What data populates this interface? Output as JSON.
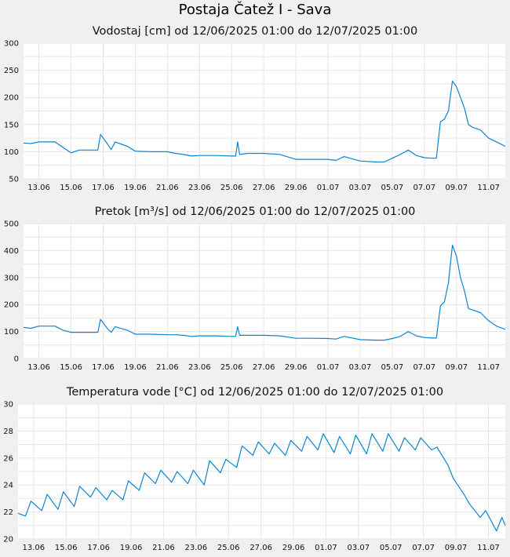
{
  "title": "Postaja Čatež I - Sava",
  "colors": {
    "series": "#0a86d0",
    "plot_bg": "#ffffff",
    "page_bg": "#f0f0f0",
    "grid": "#e6e6e6"
  },
  "chart_data": [
    {
      "type": "line",
      "title": "Vodostaj [cm] od 12/06/2025 01:00 do 12/07/2025 01:00",
      "xlabel": "",
      "ylabel": "",
      "xlim": [
        "2025-06-12 01:00",
        "2025-07-12 01:00"
      ],
      "x_tick_labels": [
        "13.06",
        "15.06",
        "17.06",
        "19.06",
        "21.06",
        "23.06",
        "25.06",
        "27.06",
        "29.06",
        "01.07",
        "03.07",
        "05.07",
        "07.07",
        "09.07",
        "11.07"
      ],
      "ylim": [
        50,
        300
      ],
      "y_ticks": [
        50,
        100,
        150,
        200,
        250,
        300
      ],
      "grid": true,
      "legend": "none",
      "series": [
        {
          "x": [
            "2025-06-12 01:00",
            "2025-06-12 12:00",
            "2025-06-13 00:00",
            "2025-06-13 12:00",
            "2025-06-14 00:00",
            "2025-06-14 12:00",
            "2025-06-15 00:00",
            "2025-06-15 12:00",
            "2025-06-16 12:00",
            "2025-06-16 16:00",
            "2025-06-16 20:00",
            "2025-06-17 06:00",
            "2025-06-17 12:00",
            "2025-06-17 18:00",
            "2025-06-18 12:00",
            "2025-06-19 00:00",
            "2025-06-20 00:00",
            "2025-06-21 00:00",
            "2025-06-21 12:00",
            "2025-06-22 00:00",
            "2025-06-22 12:00",
            "2025-06-23 00:00",
            "2025-06-24 00:00",
            "2025-06-25 00:00",
            "2025-06-25 06:00",
            "2025-06-25 09:00",
            "2025-06-25 12:00",
            "2025-06-26 00:00",
            "2025-06-27 00:00",
            "2025-06-28 00:00",
            "2025-06-29 00:00",
            "2025-06-30 00:00",
            "2025-07-01 00:00",
            "2025-07-01 12:00",
            "2025-07-02 00:00",
            "2025-07-03 00:00",
            "2025-07-04 00:00",
            "2025-07-04 12:00",
            "2025-07-05 00:00",
            "2025-07-05 12:00",
            "2025-07-06 00:00",
            "2025-07-06 12:00",
            "2025-07-07 00:00",
            "2025-07-07 12:00",
            "2025-07-07 18:00",
            "2025-07-08 00:00",
            "2025-07-08 06:00",
            "2025-07-08 12:00",
            "2025-07-08 18:00",
            "2025-07-09 00:00",
            "2025-07-09 06:00",
            "2025-07-09 12:00",
            "2025-07-09 18:00",
            "2025-07-10 00:00",
            "2025-07-10 12:00",
            "2025-07-11 00:00",
            "2025-07-11 12:00",
            "2025-07-12 01:00"
          ],
          "y": [
            116,
            115,
            118,
            118,
            118,
            108,
            98,
            103,
            103,
            103,
            132,
            115,
            104,
            118,
            110,
            101,
            100,
            100,
            97,
            95,
            92,
            93,
            93,
            92,
            92,
            118,
            95,
            97,
            97,
            95,
            86,
            86,
            86,
            84,
            91,
            83,
            81,
            81,
            88,
            95,
            103,
            93,
            89,
            88,
            88,
            155,
            160,
            175,
            230,
            220,
            200,
            180,
            150,
            145,
            140,
            125,
            118,
            110
          ]
        }
      ]
    },
    {
      "type": "line",
      "title": "Pretok [m³/s] od 12/06/2025 01:00 do 12/07/2025 01:00",
      "xlabel": "",
      "ylabel": "",
      "xlim": [
        "2025-06-12 01:00",
        "2025-07-12 01:00"
      ],
      "x_tick_labels": [
        "13.06",
        "15.06",
        "17.06",
        "19.06",
        "21.06",
        "23.06",
        "25.06",
        "27.06",
        "29.06",
        "01.07",
        "03.07",
        "05.07",
        "07.07",
        "09.07",
        "11.07"
      ],
      "ylim": [
        0,
        500
      ],
      "y_ticks": [
        0,
        100,
        200,
        300,
        400,
        500
      ],
      "grid": true,
      "legend": "none",
      "series": [
        {
          "x": [
            "2025-06-12 01:00",
            "2025-06-12 12:00",
            "2025-06-13 00:00",
            "2025-06-13 12:00",
            "2025-06-14 00:00",
            "2025-06-14 12:00",
            "2025-06-15 00:00",
            "2025-06-15 12:00",
            "2025-06-16 12:00",
            "2025-06-16 16:00",
            "2025-06-16 20:00",
            "2025-06-17 06:00",
            "2025-06-17 12:00",
            "2025-06-17 18:00",
            "2025-06-18 12:00",
            "2025-06-19 00:00",
            "2025-06-20 00:00",
            "2025-06-21 00:00",
            "2025-06-21 12:00",
            "2025-06-22 00:00",
            "2025-06-22 12:00",
            "2025-06-23 00:00",
            "2025-06-24 00:00",
            "2025-06-25 00:00",
            "2025-06-25 06:00",
            "2025-06-25 09:00",
            "2025-06-25 12:00",
            "2025-06-26 00:00",
            "2025-06-27 00:00",
            "2025-06-28 00:00",
            "2025-06-29 00:00",
            "2025-06-30 00:00",
            "2025-07-01 00:00",
            "2025-07-01 12:00",
            "2025-07-02 00:00",
            "2025-07-03 00:00",
            "2025-07-04 00:00",
            "2025-07-04 12:00",
            "2025-07-05 00:00",
            "2025-07-05 12:00",
            "2025-07-06 00:00",
            "2025-07-06 12:00",
            "2025-07-07 00:00",
            "2025-07-07 12:00",
            "2025-07-07 18:00",
            "2025-07-08 00:00",
            "2025-07-08 06:00",
            "2025-07-08 12:00",
            "2025-07-08 18:00",
            "2025-07-09 00:00",
            "2025-07-09 06:00",
            "2025-07-09 12:00",
            "2025-07-09 18:00",
            "2025-07-10 00:00",
            "2025-07-10 12:00",
            "2025-07-11 00:00",
            "2025-07-11 12:00",
            "2025-07-12 01:00"
          ],
          "y": [
            115,
            112,
            120,
            120,
            120,
            105,
            97,
            97,
            97,
            97,
            145,
            112,
            97,
            118,
            105,
            90,
            90,
            88,
            88,
            86,
            82,
            84,
            84,
            82,
            82,
            118,
            86,
            86,
            86,
            84,
            75,
            75,
            74,
            72,
            82,
            70,
            68,
            68,
            74,
            82,
            100,
            84,
            78,
            76,
            76,
            195,
            210,
            280,
            420,
            380,
            300,
            250,
            185,
            180,
            170,
            140,
            120,
            108
          ]
        }
      ]
    },
    {
      "type": "line",
      "title": "Temperatura vode [°C] od 12/06/2025 01:00 do 12/07/2025 01:00",
      "xlabel": "",
      "ylabel": "",
      "xlim": [
        "2025-06-12 01:00",
        "2025-07-12 01:00"
      ],
      "x_tick_labels": [
        "13.06",
        "15.06",
        "17.06",
        "19.06",
        "21.06",
        "23.06",
        "25.06",
        "27.06",
        "29.06",
        "01.07",
        "03.07",
        "05.07",
        "07.07",
        "09.07",
        "11.07"
      ],
      "ylim": [
        20,
        30
      ],
      "y_ticks": [
        20,
        22,
        24,
        26,
        28,
        30
      ],
      "grid": true,
      "legend": "none",
      "series": [
        {
          "x": [
            "2025-06-12 01:00",
            "2025-06-12 12:00",
            "2025-06-12 20:00",
            "2025-06-13 12:00",
            "2025-06-13 20:00",
            "2025-06-14 12:00",
            "2025-06-14 20:00",
            "2025-06-15 12:00",
            "2025-06-15 20:00",
            "2025-06-16 12:00",
            "2025-06-16 20:00",
            "2025-06-17 12:00",
            "2025-06-17 20:00",
            "2025-06-18 12:00",
            "2025-06-18 20:00",
            "2025-06-19 12:00",
            "2025-06-19 20:00",
            "2025-06-20 12:00",
            "2025-06-20 20:00",
            "2025-06-21 12:00",
            "2025-06-21 20:00",
            "2025-06-22 12:00",
            "2025-06-22 20:00",
            "2025-06-23 12:00",
            "2025-06-23 20:00",
            "2025-06-24 12:00",
            "2025-06-24 20:00",
            "2025-06-25 12:00",
            "2025-06-25 20:00",
            "2025-06-26 12:00",
            "2025-06-26 20:00",
            "2025-06-27 12:00",
            "2025-06-27 20:00",
            "2025-06-28 12:00",
            "2025-06-28 20:00",
            "2025-06-29 12:00",
            "2025-06-29 20:00",
            "2025-06-30 12:00",
            "2025-06-30 20:00",
            "2025-07-01 12:00",
            "2025-07-01 20:00",
            "2025-07-02 12:00",
            "2025-07-02 20:00",
            "2025-07-03 12:00",
            "2025-07-03 20:00",
            "2025-07-04 12:00",
            "2025-07-04 20:00",
            "2025-07-05 12:00",
            "2025-07-05 20:00",
            "2025-07-06 12:00",
            "2025-07-06 20:00",
            "2025-07-07 12:00",
            "2025-07-07 20:00",
            "2025-07-08 12:00",
            "2025-07-08 20:00",
            "2025-07-09 12:00",
            "2025-07-09 20:00",
            "2025-07-10 12:00",
            "2025-07-10 20:00",
            "2025-07-11 12:00",
            "2025-07-11 20:00",
            "2025-07-12 01:00"
          ],
          "y": [
            21.9,
            21.7,
            22.8,
            22.1,
            23.3,
            22.2,
            23.5,
            22.4,
            23.9,
            23.1,
            23.8,
            22.9,
            23.6,
            22.9,
            24.3,
            23.6,
            24.9,
            24.1,
            25.1,
            24.2,
            25.0,
            24.1,
            25.1,
            24.0,
            25.8,
            24.9,
            25.9,
            25.3,
            26.9,
            26.2,
            27.2,
            26.3,
            27.1,
            26.2,
            27.3,
            26.5,
            27.6,
            26.6,
            27.8,
            26.4,
            27.6,
            26.3,
            27.7,
            26.3,
            27.8,
            26.5,
            27.8,
            26.5,
            27.5,
            26.6,
            27.5,
            26.6,
            26.8,
            25.5,
            24.5,
            23.3,
            22.6,
            21.6,
            22.1,
            20.6,
            21.6,
            21.0
          ]
        }
      ]
    }
  ]
}
